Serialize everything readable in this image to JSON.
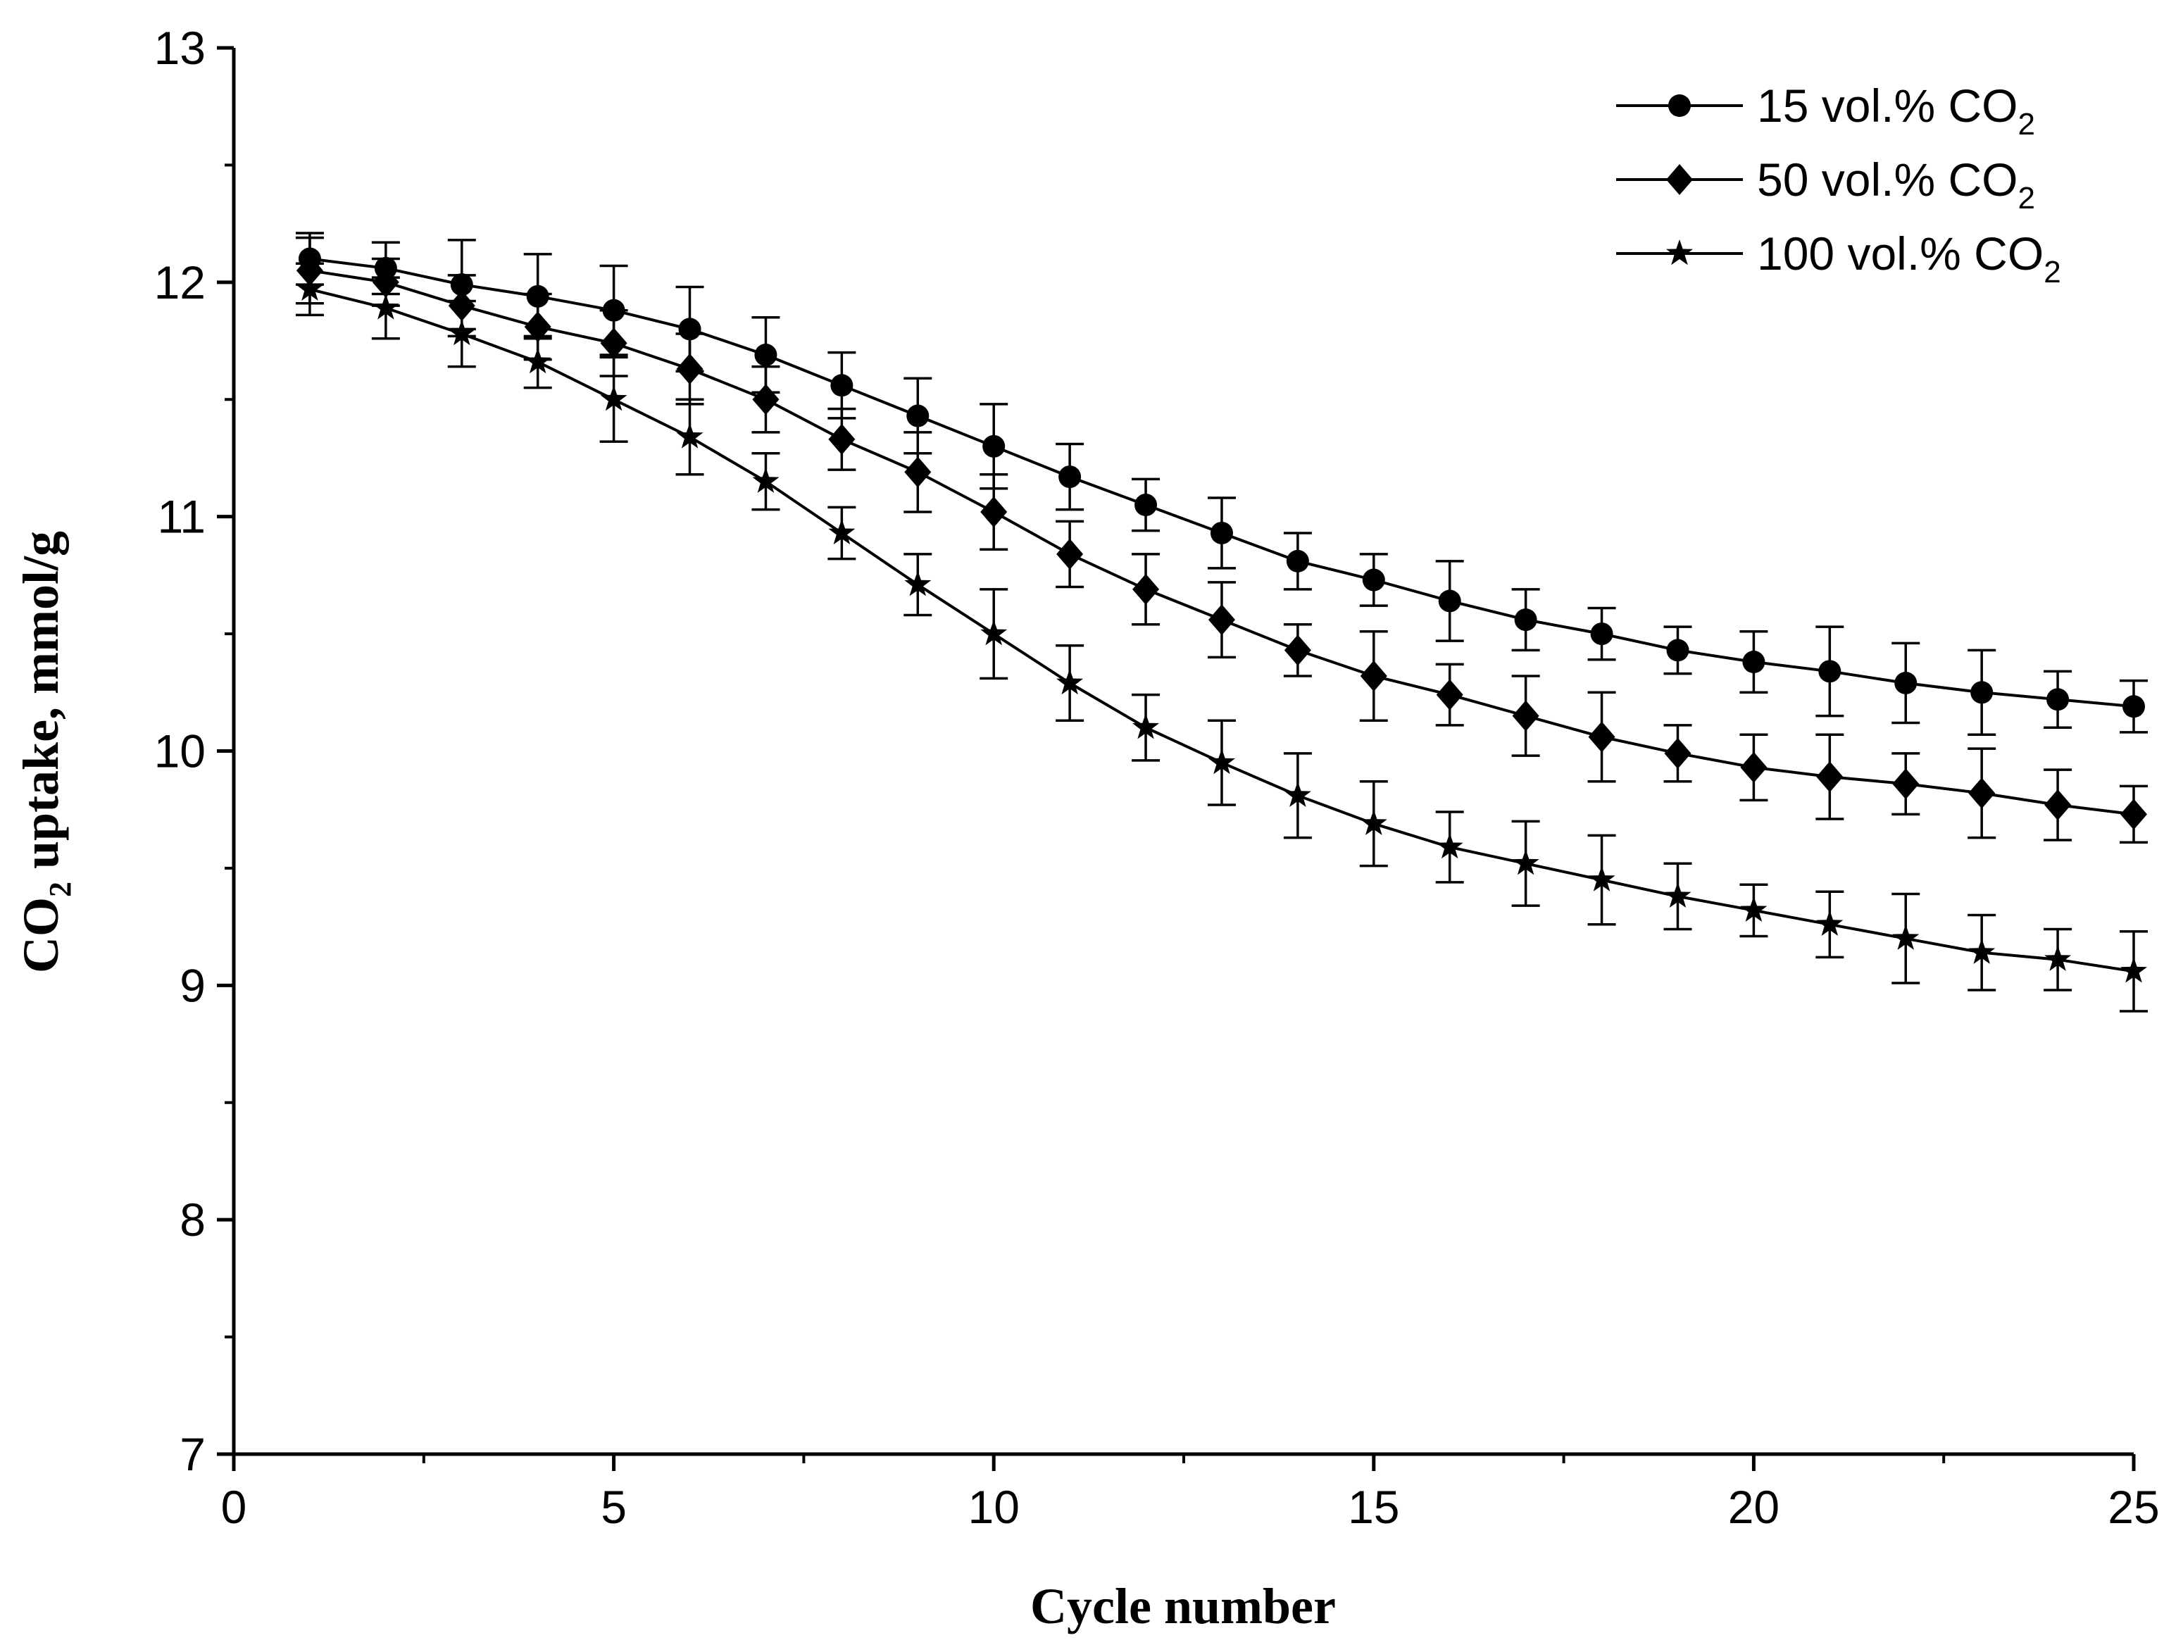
{
  "chart_data": {
    "type": "line",
    "title": "",
    "xlabel": "Cycle number",
    "ylabel_main": "CO",
    "ylabel_sub": "2",
    "ylabel_rest": " uptake, mmol/g",
    "xlim": [
      0,
      25
    ],
    "ylim": [
      7,
      13
    ],
    "x_ticks": [
      0,
      5,
      10,
      15,
      20,
      25
    ],
    "y_ticks": [
      7,
      8,
      9,
      10,
      11,
      12,
      13
    ],
    "x_tick_labels": [
      "0",
      "5",
      "10",
      "15",
      "20",
      "25"
    ],
    "y_tick_labels": [
      "7",
      "8",
      "9",
      "10",
      "11",
      "12",
      "13"
    ],
    "grid": false,
    "legend_position": "top-right",
    "x": [
      1,
      2,
      3,
      4,
      5,
      6,
      7,
      8,
      9,
      10,
      11,
      12,
      13,
      14,
      15,
      16,
      17,
      18,
      19,
      20,
      21,
      22,
      23,
      24,
      25
    ],
    "series": [
      {
        "name": "15 vol.% CO2",
        "label_main": "15 vol.% CO",
        "label_sub": "2",
        "marker": "circle",
        "values": [
          12.1,
          12.06,
          11.99,
          11.94,
          11.88,
          11.8,
          11.69,
          11.56,
          11.43,
          11.3,
          11.17,
          11.05,
          10.93,
          10.81,
          10.73,
          10.64,
          10.56,
          10.5,
          10.43,
          10.38,
          10.34,
          10.29,
          10.25,
          10.22,
          10.19
        ],
        "errors": [
          0.11,
          0.11,
          0.19,
          0.18,
          0.19,
          0.18,
          0.16,
          0.14,
          0.16,
          0.18,
          0.14,
          0.11,
          0.15,
          0.12,
          0.11,
          0.17,
          0.13,
          0.11,
          0.1,
          0.13,
          0.19,
          0.17,
          0.18,
          0.12,
          0.11
        ]
      },
      {
        "name": "50 vol.% CO2",
        "label_main": "50 vol.% CO",
        "label_sub": "2",
        "marker": "diamond",
        "values": [
          12.05,
          12.0,
          11.9,
          11.81,
          11.74,
          11.63,
          11.5,
          11.33,
          11.19,
          11.02,
          10.84,
          10.69,
          10.56,
          10.43,
          10.32,
          10.24,
          10.15,
          10.06,
          9.99,
          9.93,
          9.89,
          9.86,
          9.82,
          9.77,
          9.73
        ],
        "errors": [
          0.14,
          0.1,
          0.13,
          0.14,
          0.14,
          0.15,
          0.14,
          0.13,
          0.17,
          0.16,
          0.14,
          0.15,
          0.16,
          0.11,
          0.19,
          0.13,
          0.17,
          0.19,
          0.12,
          0.14,
          0.18,
          0.13,
          0.19,
          0.15,
          0.12
        ]
      },
      {
        "name": "100 vol.% CO2",
        "label_main": "100 vol.% CO",
        "label_sub": "2",
        "marker": "star",
        "values": [
          11.97,
          11.89,
          11.78,
          11.66,
          11.5,
          11.34,
          11.15,
          10.93,
          10.71,
          10.5,
          10.29,
          10.1,
          9.95,
          9.81,
          9.69,
          9.59,
          9.52,
          9.45,
          9.38,
          9.32,
          9.26,
          9.2,
          9.14,
          9.11,
          9.06
        ],
        "errors": [
          0.11,
          0.13,
          0.14,
          0.11,
          0.18,
          0.16,
          0.12,
          0.11,
          0.13,
          0.19,
          0.16,
          0.14,
          0.18,
          0.18,
          0.18,
          0.15,
          0.18,
          0.19,
          0.14,
          0.11,
          0.14,
          0.19,
          0.16,
          0.13,
          0.17
        ]
      }
    ]
  }
}
